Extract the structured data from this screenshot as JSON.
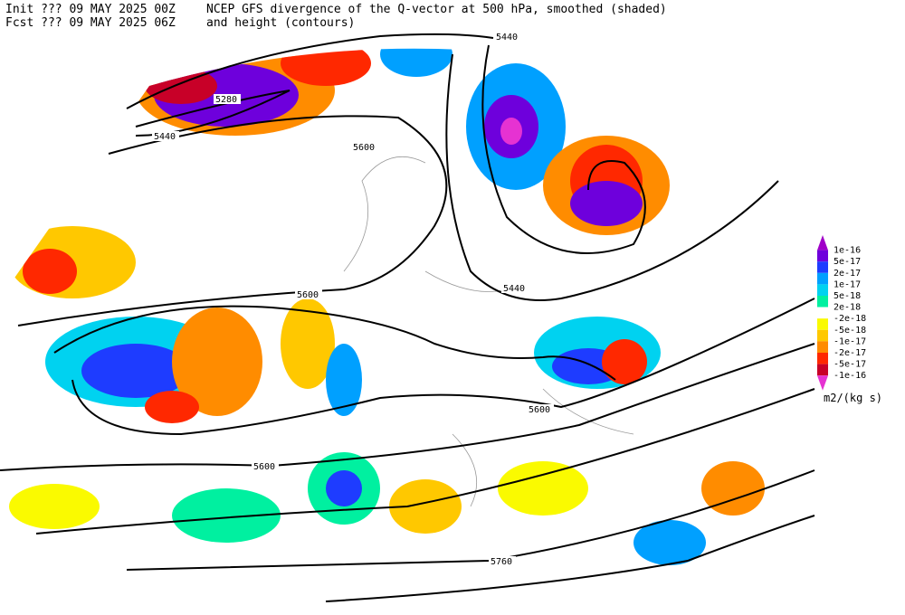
{
  "header": {
    "init": "Init  ??? 09 MAY 2025 00Z",
    "fcst": "Fcst ??? 09 MAY 2025 06Z",
    "title_1": "NCEP GFS divergence of the Q-vector at 500 hPa, smoothed (shaded)",
    "title_2": "and height (contours)"
  },
  "contour_labels": [
    "5440",
    "5280",
    "5440",
    "5600",
    "5600",
    "5440",
    "5600",
    "5600",
    "5760"
  ],
  "legend": {
    "labels": [
      "1e-16",
      "5e-17",
      "2e-17",
      "1e-17",
      "5e-18",
      "2e-18",
      "-2e-18",
      "-5e-18",
      "-1e-17",
      "-2e-17",
      "-5e-17",
      "-1e-16"
    ],
    "colors": [
      "#a000c8",
      "#6e00dc",
      "#1e3cff",
      "#00a0ff",
      "#00d2f0",
      "#00f0a0",
      "#ffffff",
      "#fafa00",
      "#ffc800",
      "#ff8c00",
      "#ff2800",
      "#c80028",
      "#e632d2"
    ],
    "unit": "m2/(kg s)"
  }
}
